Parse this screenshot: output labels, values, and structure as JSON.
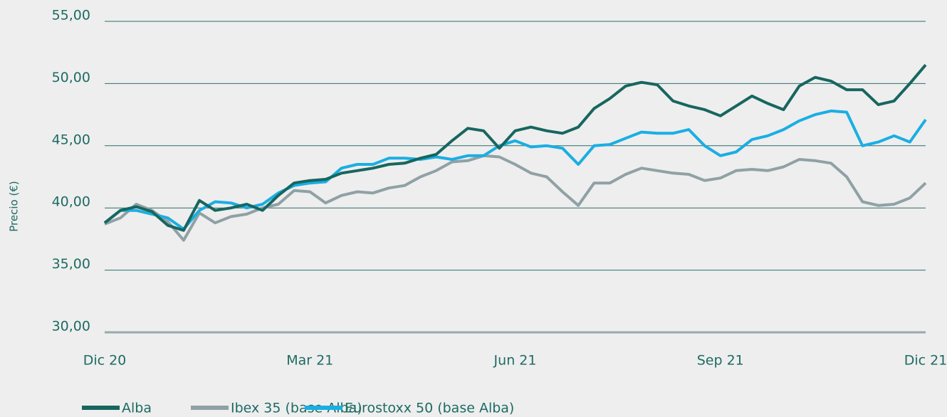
{
  "chart_data": {
    "type": "line",
    "y_label": "Precio (€)",
    "categories": [
      "Dic 20",
      null,
      null,
      null,
      null,
      null,
      null,
      null,
      null,
      null,
      null,
      null,
      null,
      "Mar 21",
      null,
      null,
      null,
      null,
      null,
      null,
      null,
      null,
      null,
      null,
      null,
      null,
      "Jun 21",
      null,
      null,
      null,
      null,
      null,
      null,
      null,
      null,
      null,
      null,
      null,
      null,
      "Sep 21",
      null,
      null,
      null,
      null,
      null,
      null,
      null,
      null,
      null,
      null,
      null,
      null,
      "Dic 21"
    ],
    "series": [
      {
        "name": "Alba",
        "color": "#17665f",
        "values": [
          38.8,
          39.8,
          40.1,
          39.7,
          38.6,
          38.2,
          40.6,
          39.8,
          40.0,
          40.3,
          39.8,
          41.0,
          42.0,
          42.2,
          42.3,
          42.8,
          43.0,
          43.2,
          43.5,
          43.6,
          44.0,
          44.3,
          45.4,
          46.4,
          46.2,
          44.8,
          46.2,
          46.5,
          46.2,
          46.0,
          46.5,
          48.0,
          48.8,
          49.8,
          50.1,
          49.9,
          48.6,
          48.2,
          47.9,
          47.4,
          48.2,
          49.0,
          48.4,
          47.9,
          49.8,
          50.5,
          50.2,
          49.5,
          49.5,
          48.3,
          48.6,
          50.0,
          51.5
        ]
      },
      {
        "name": "Ibex 35 (base Alba)",
        "color": "#8fa1a4",
        "values": [
          38.7,
          39.2,
          40.3,
          39.8,
          38.9,
          37.4,
          39.6,
          38.8,
          39.3,
          39.5,
          40.0,
          40.3,
          41.4,
          41.3,
          40.4,
          41.0,
          41.3,
          41.2,
          41.6,
          41.8,
          42.5,
          43.0,
          43.7,
          43.8,
          44.2,
          44.1,
          43.5,
          42.8,
          42.5,
          41.3,
          40.2,
          42.0,
          42.0,
          42.7,
          43.2,
          43.0,
          42.8,
          42.7,
          42.2,
          42.4,
          43.0,
          43.1,
          43.0,
          43.3,
          43.9,
          43.8,
          43.6,
          42.5,
          40.5,
          40.2,
          40.3,
          40.8,
          42.0
        ]
      },
      {
        "name": "Eurostoxx 50 (base Alba)",
        "color": "#1aaee3",
        "values": [
          38.8,
          39.8,
          39.8,
          39.5,
          39.2,
          38.3,
          39.8,
          40.5,
          40.4,
          40.0,
          40.3,
          41.2,
          41.8,
          42.0,
          42.1,
          43.2,
          43.5,
          43.5,
          44.0,
          44.0,
          43.9,
          44.1,
          43.9,
          44.2,
          44.2,
          45.0,
          45.4,
          44.9,
          45.0,
          44.8,
          43.5,
          45.0,
          45.1,
          45.6,
          46.1,
          46.0,
          46.0,
          46.3,
          45.0,
          44.2,
          44.5,
          45.5,
          45.8,
          46.3,
          47.0,
          47.5,
          47.8,
          47.7,
          45.0,
          45.3,
          45.8,
          45.3,
          47.1
        ]
      }
    ],
    "ylim": [
      30,
      55
    ],
    "yticks": [
      {
        "value": 30,
        "label": "30,00"
      },
      {
        "value": 35,
        "label": "35,00"
      },
      {
        "value": 40,
        "label": "40,00"
      },
      {
        "value": 45,
        "label": "45,00"
      },
      {
        "value": 50,
        "label": "50,00"
      },
      {
        "value": 55,
        "label": "55,00"
      }
    ],
    "grid": true
  }
}
